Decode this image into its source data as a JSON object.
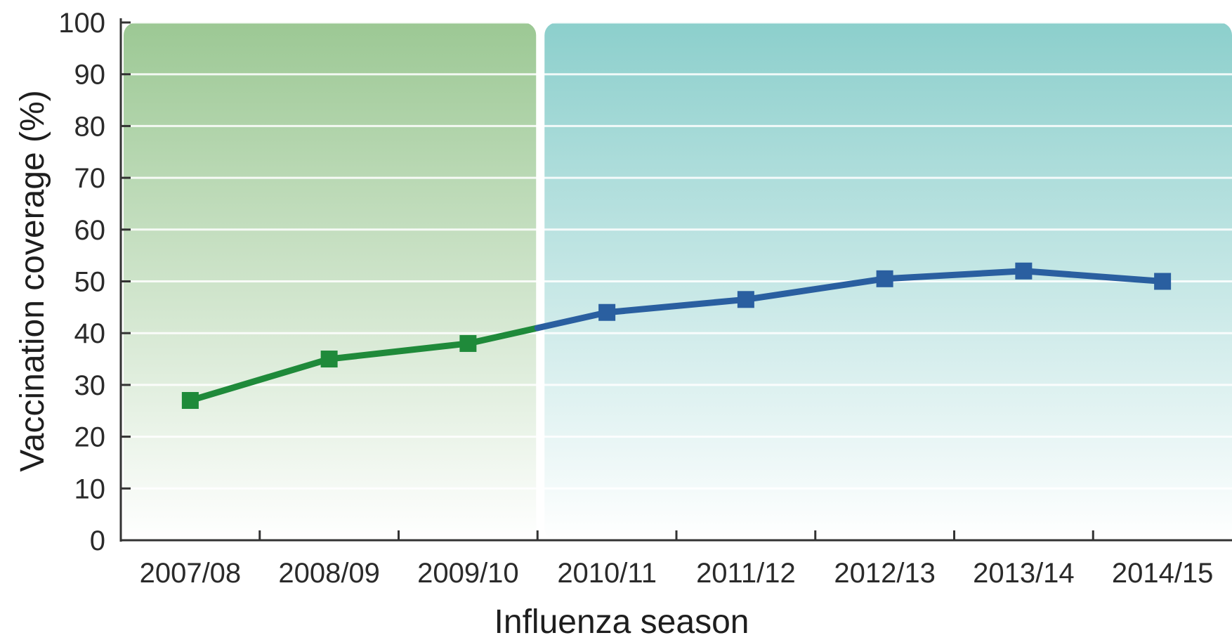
{
  "chart_data": {
    "type": "line",
    "xlabel": "Influenza season",
    "ylabel": "Vaccination coverage (%)",
    "ylim": [
      0,
      100
    ],
    "yticks": [
      0,
      10,
      20,
      30,
      40,
      50,
      60,
      70,
      80,
      90,
      100
    ],
    "categories": [
      "2007/08",
      "2008/09",
      "2009/10",
      "2010/11",
      "2011/12",
      "2012/13",
      "2013/14",
      "2014/15"
    ],
    "series": [
      {
        "values": [
          27,
          35,
          38,
          44,
          46.5,
          50.5,
          52,
          50
        ],
        "color_before": "#1f8a3a",
        "color_after": "#2a5fa0"
      }
    ],
    "shaded_regions": [
      {
        "from_category": 0,
        "to_category": 2,
        "color": "#9cc894"
      },
      {
        "from_category": 3,
        "to_category": 7,
        "color": "#8ccfcc"
      }
    ],
    "grid": true,
    "colors": {
      "grid": "#ffffff",
      "axis": "#333333"
    }
  }
}
